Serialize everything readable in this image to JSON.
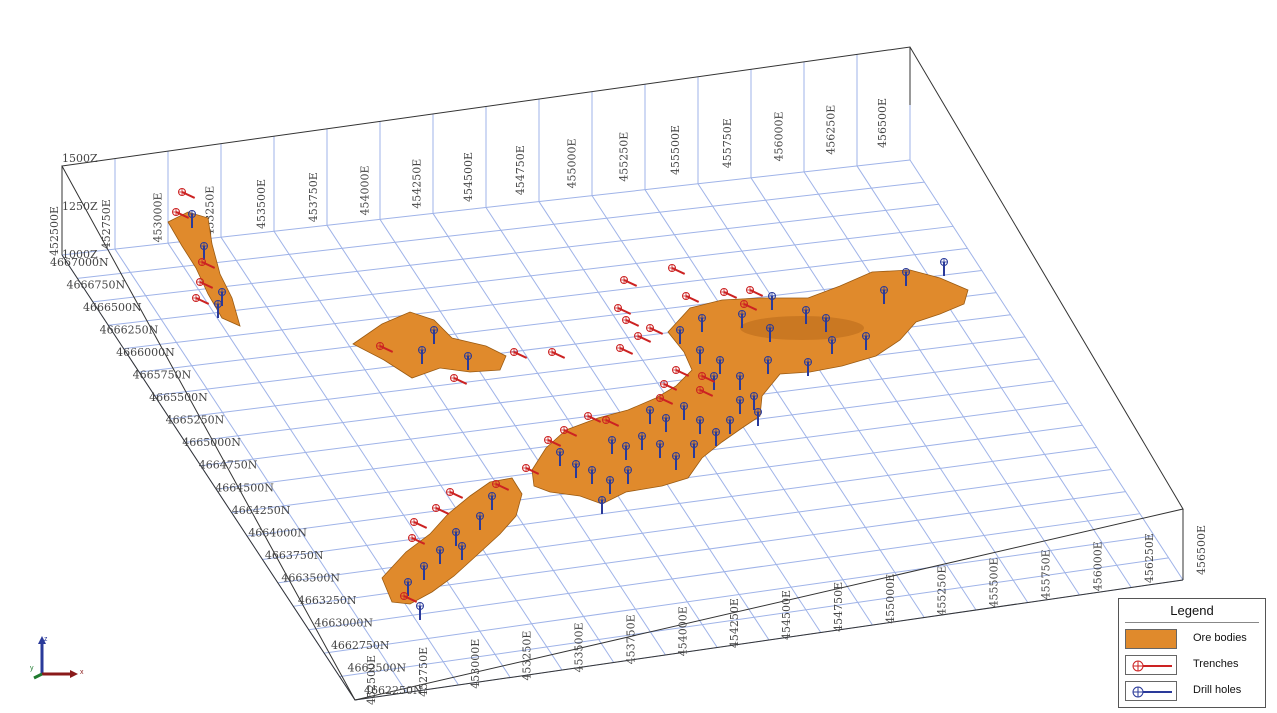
{
  "scene": {
    "z_labels": [
      "1500Z",
      "1250Z",
      "1000Z"
    ],
    "east_labels_top": [
      "452500E",
      "452750E",
      "453000E",
      "453250E",
      "453500E",
      "453750E",
      "454000E",
      "454250E",
      "454500E",
      "454750E",
      "455000E",
      "455250E",
      "455500E",
      "455750E",
      "456000E",
      "456250E",
      "456500E"
    ],
    "east_labels_bottom": [
      "452500E",
      "452750E",
      "453000E",
      "453250E",
      "453500E",
      "453750E",
      "454000E",
      "454250E",
      "454500E",
      "454750E",
      "455000E",
      "455250E",
      "455500E",
      "455750E",
      "456000E",
      "456250E",
      "456500E"
    ],
    "north_labels": [
      "4667000N",
      "4666750N",
      "4666500N",
      "4666250N",
      "4666000N",
      "4665750N",
      "4665500N",
      "4665250N",
      "4665000N",
      "4664750N",
      "4664500N",
      "4664250N",
      "4664000N",
      "4663750N",
      "4663500N",
      "4663250N",
      "4663000N",
      "4662750N",
      "4662500N",
      "4662250N"
    ]
  },
  "legend": {
    "title": "Legend",
    "items": [
      {
        "label": "Ore bodies",
        "color": "#e08a2c",
        "symbol": "fill"
      },
      {
        "label": "Trenches",
        "color": "#cc2222",
        "symbol": "circle-cross-line"
      },
      {
        "label": "Drill holes",
        "color": "#2a3a9a",
        "symbol": "circle-cross-line"
      }
    ]
  },
  "axis_triad": {
    "x": "x",
    "y": "y",
    "z": "z"
  },
  "colors": {
    "grid": "#9fb3e8",
    "ore": "#e08a2c",
    "trench": "#cc2222",
    "drill": "#2a3a9a"
  }
}
